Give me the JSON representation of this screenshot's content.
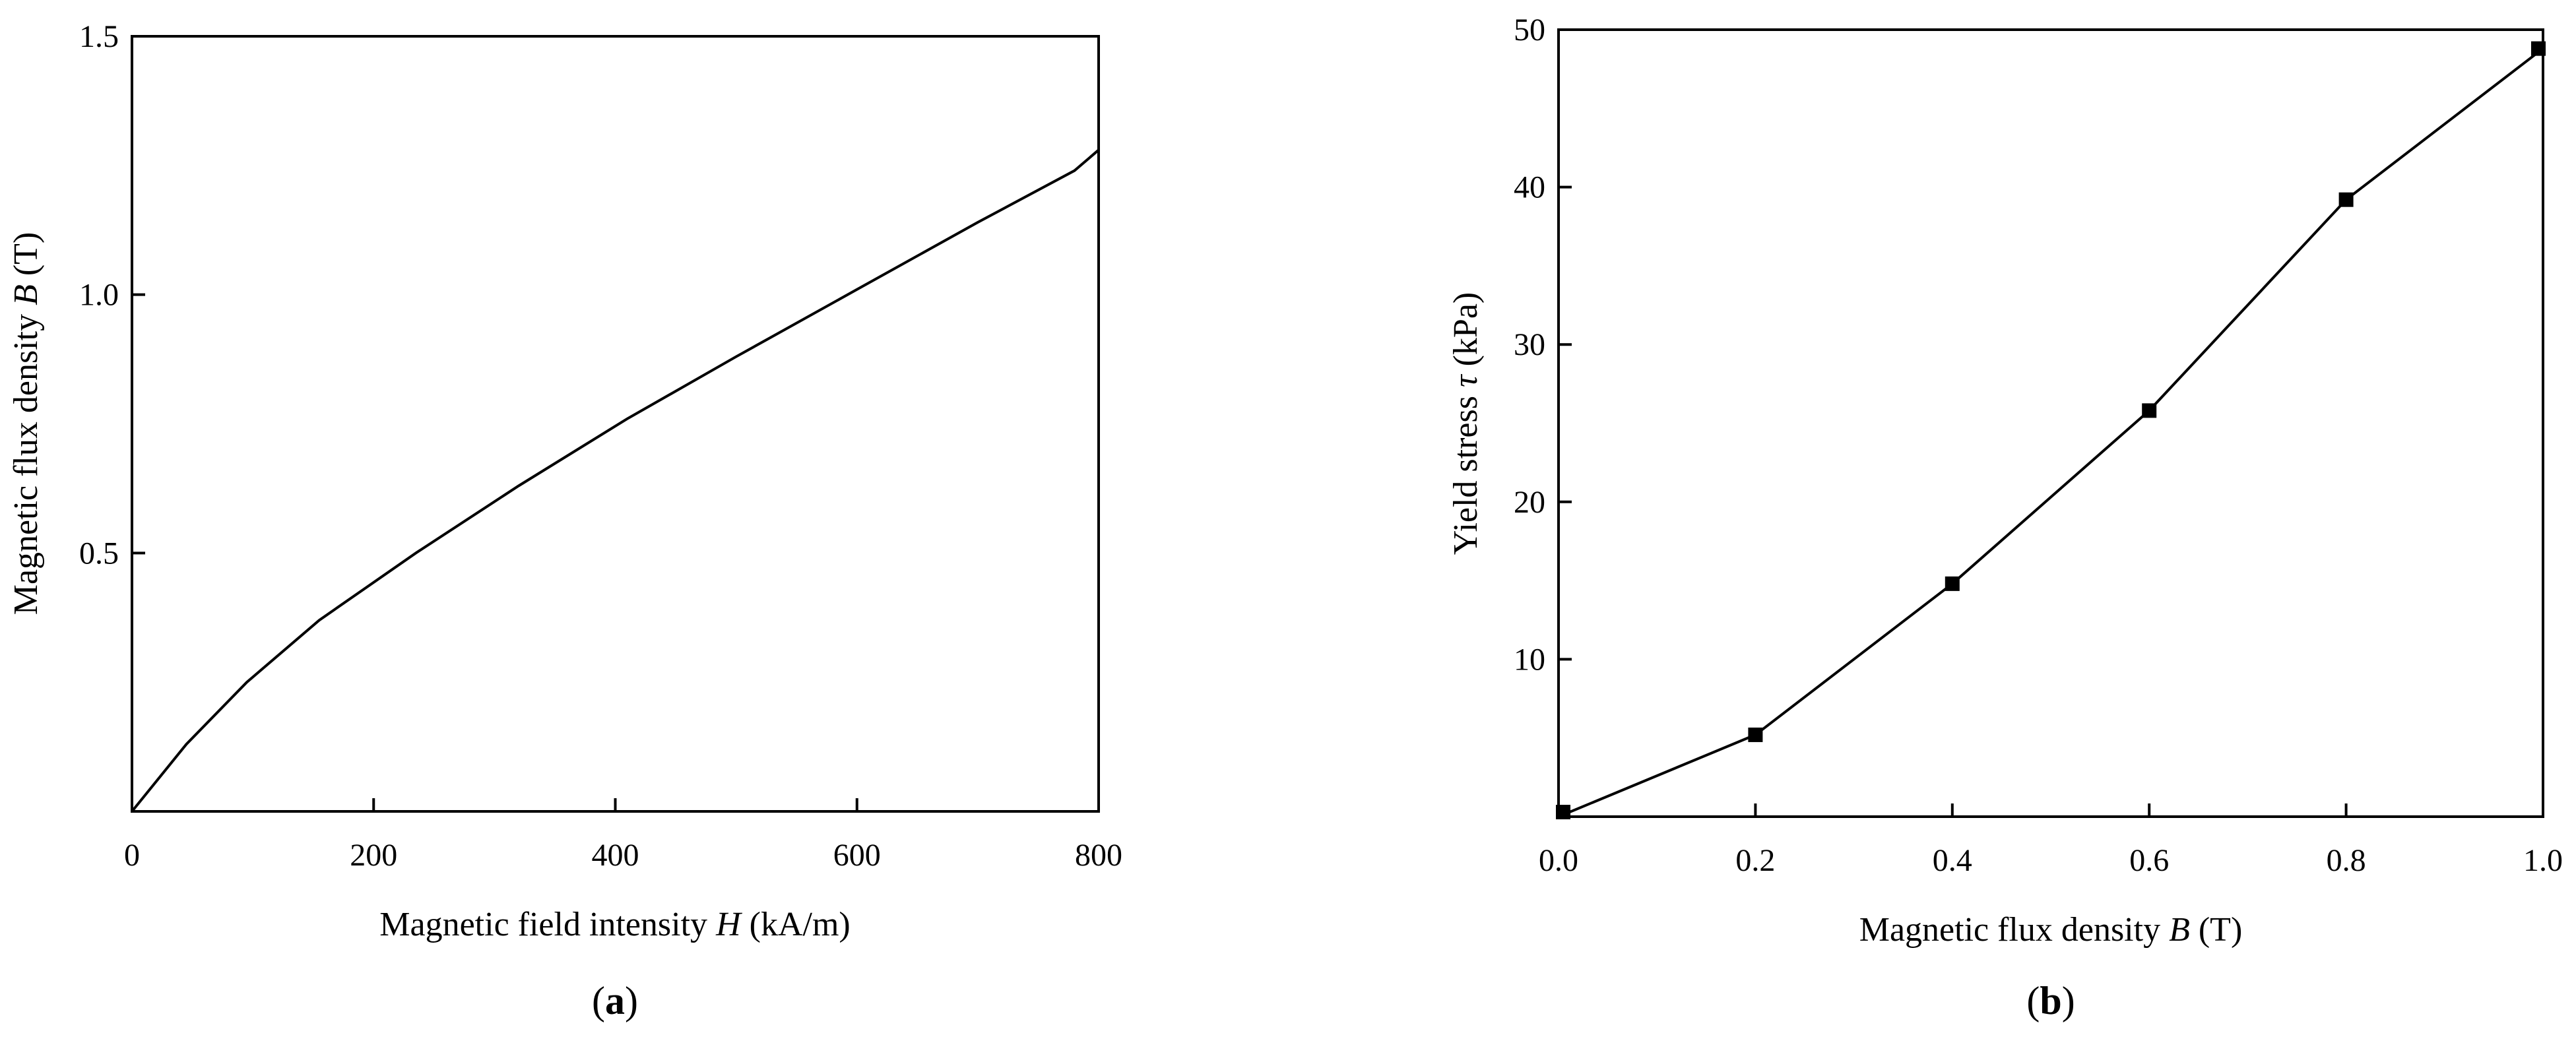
{
  "chart_data": [
    {
      "type": "line",
      "panel_label": "a",
      "xlabel_prefix": "Magnetic field intensity ",
      "xlabel_var": "H",
      "xlabel_suffix": " (kA/m)",
      "ylabel_prefix": "Magnetic flux density ",
      "ylabel_var": "B",
      "ylabel_suffix": " (T)",
      "xlim": [
        0,
        800
      ],
      "ylim": [
        0,
        1.5
      ],
      "x_ticks": [
        0,
        200,
        400,
        600,
        800
      ],
      "x_tick_labels": [
        "0",
        "200",
        "400",
        "600",
        "800"
      ],
      "y_ticks": [
        0.5,
        1.0,
        1.5
      ],
      "y_tick_labels": [
        "0.5",
        "1.0",
        "1.5"
      ],
      "grid": false,
      "markers": false,
      "x": [
        0,
        45,
        95,
        155,
        235,
        320,
        410,
        500,
        600,
        700,
        780,
        800
      ],
      "y": [
        0.0,
        0.13,
        0.25,
        0.37,
        0.5,
        0.63,
        0.76,
        0.88,
        1.01,
        1.14,
        1.24,
        1.28
      ]
    },
    {
      "type": "line",
      "panel_label": "b",
      "xlabel_prefix": "Magnetic flux density ",
      "xlabel_var": "B",
      "xlabel_suffix": " (T)",
      "ylabel_prefix": "Yield stress ",
      "ylabel_var": "τ",
      "ylabel_suffix": " (kPa)",
      "xlim": [
        0,
        1.0
      ],
      "ylim": [
        0,
        50
      ],
      "x_ticks": [
        0,
        0.2,
        0.4,
        0.6,
        0.8,
        1.0
      ],
      "x_tick_labels": [
        "0.0",
        "0.2",
        "0.4",
        "0.6",
        "0.8",
        "1.0"
      ],
      "y_ticks": [
        10,
        20,
        30,
        40,
        50
      ],
      "y_tick_labels": [
        "10",
        "20",
        "30",
        "40",
        "50"
      ],
      "grid": false,
      "markers": true,
      "marker_shape": "square",
      "x": [
        0.0,
        0.2,
        0.4,
        0.6,
        0.8,
        1.0
      ],
      "y": [
        0.0,
        5.2,
        14.8,
        25.8,
        39.2,
        48.8
      ]
    }
  ]
}
